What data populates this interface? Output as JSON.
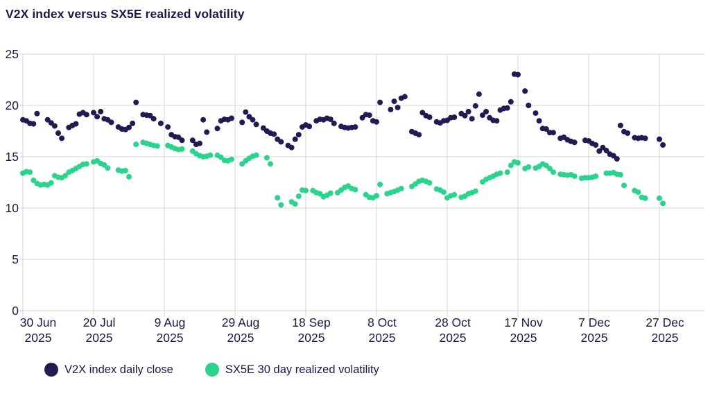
{
  "title": "V2X index versus SX5E realized volatility",
  "colors": {
    "v2x": "#221a52",
    "sx5e": "#2bd48c",
    "grid": "#d6d6d6",
    "text": "#1e1749",
    "background": "#ffffff"
  },
  "chart_data": {
    "type": "scatter",
    "title": "V2X index versus SX5E realized volatility",
    "xlabel": "",
    "ylabel": "",
    "x_unit": "days since 30 Jun 2025",
    "ylim": [
      0,
      25
    ],
    "y_ticks": [
      0,
      5,
      10,
      15,
      20,
      25
    ],
    "grid": true,
    "legend_position": "bottom-left",
    "x_ticks": [
      {
        "d": 0,
        "line1": "30 Jun",
        "line2": "2025"
      },
      {
        "d": 20,
        "line1": "20 Jul",
        "line2": "2025"
      },
      {
        "d": 40,
        "line1": "9 Aug",
        "line2": "2025"
      },
      {
        "d": 60,
        "line1": "29 Aug",
        "line2": "2025"
      },
      {
        "d": 80,
        "line1": "18 Sep",
        "line2": "2025"
      },
      {
        "d": 100,
        "line1": "8 Oct",
        "line2": "2025"
      },
      {
        "d": 120,
        "line1": "28 Oct",
        "line2": "2025"
      },
      {
        "d": 140,
        "line1": "17 Nov",
        "line2": "2025"
      },
      {
        "d": 160,
        "line1": "7 Dec",
        "line2": "2025"
      },
      {
        "d": 180,
        "line1": "27 Dec",
        "line2": "2025"
      }
    ],
    "series": [
      {
        "id": "v2x",
        "name": "V2X index daily close",
        "color": "#221a52",
        "points": [
          [
            0,
            18.6
          ],
          [
            1,
            18.5
          ],
          [
            2,
            18.25
          ],
          [
            3,
            18.2
          ],
          [
            4,
            19.2
          ],
          [
            7,
            18.6
          ],
          [
            8,
            18.3
          ],
          [
            9,
            18.0
          ],
          [
            10,
            17.3
          ],
          [
            11,
            16.8
          ],
          [
            13,
            17.85
          ],
          [
            14,
            18.05
          ],
          [
            15,
            18.2
          ],
          [
            16,
            19.15
          ],
          [
            17,
            19.3
          ],
          [
            18,
            19.1
          ],
          [
            20,
            19.3
          ],
          [
            21,
            18.9
          ],
          [
            22,
            19.4
          ],
          [
            23,
            18.7
          ],
          [
            24,
            18.6
          ],
          [
            25,
            18.35
          ],
          [
            27,
            17.9
          ],
          [
            28,
            17.7
          ],
          [
            29,
            17.65
          ],
          [
            30,
            17.85
          ],
          [
            31,
            18.25
          ],
          [
            32,
            20.3
          ],
          [
            34,
            19.1
          ],
          [
            35,
            19.05
          ],
          [
            36,
            19.0
          ],
          [
            37,
            18.7
          ],
          [
            39,
            18.25
          ],
          [
            41,
            17.9
          ],
          [
            42,
            17.15
          ],
          [
            43,
            16.95
          ],
          [
            44,
            16.9
          ],
          [
            45,
            16.6
          ],
          [
            48,
            16.6
          ],
          [
            49,
            16.2
          ],
          [
            50,
            16.3
          ],
          [
            51,
            18.6
          ],
          [
            52,
            17.4
          ],
          [
            55,
            17.75
          ],
          [
            56,
            18.5
          ],
          [
            57,
            18.65
          ],
          [
            58,
            18.6
          ],
          [
            59,
            18.75
          ],
          [
            62,
            18.35
          ],
          [
            63,
            19.35
          ],
          [
            64,
            18.9
          ],
          [
            65,
            18.6
          ],
          [
            66,
            18.15
          ],
          [
            68,
            17.8
          ],
          [
            69,
            17.5
          ],
          [
            70,
            17.3
          ],
          [
            71,
            17.2
          ],
          [
            72,
            16.7
          ],
          [
            73,
            16.45
          ],
          [
            75,
            16.1
          ],
          [
            76,
            15.9
          ],
          [
            77,
            16.7
          ],
          [
            78,
            17.15
          ],
          [
            79,
            17.9
          ],
          [
            80,
            18.1
          ],
          [
            81,
            17.95
          ],
          [
            83,
            18.5
          ],
          [
            84,
            18.65
          ],
          [
            85,
            18.6
          ],
          [
            86,
            18.75
          ],
          [
            87,
            18.65
          ],
          [
            88,
            18.25
          ],
          [
            90,
            17.95
          ],
          [
            91,
            17.85
          ],
          [
            92,
            17.8
          ],
          [
            93,
            17.85
          ],
          [
            94,
            17.9
          ],
          [
            96,
            18.8
          ],
          [
            97,
            19.1
          ],
          [
            98,
            19.05
          ],
          [
            99,
            18.5
          ],
          [
            100,
            18.4
          ],
          [
            101,
            20.3
          ],
          [
            104,
            19.6
          ],
          [
            105,
            20.4
          ],
          [
            106,
            19.8
          ],
          [
            107,
            20.7
          ],
          [
            108,
            20.85
          ],
          [
            110,
            17.45
          ],
          [
            111,
            17.3
          ],
          [
            112,
            17.15
          ],
          [
            113,
            19.3
          ],
          [
            114,
            19.0
          ],
          [
            115,
            18.85
          ],
          [
            117,
            18.4
          ],
          [
            118,
            18.3
          ],
          [
            119,
            18.5
          ],
          [
            120,
            18.55
          ],
          [
            121,
            18.8
          ],
          [
            122,
            18.85
          ],
          [
            124,
            19.2
          ],
          [
            125,
            19.0
          ],
          [
            126,
            19.4
          ],
          [
            127,
            18.7
          ],
          [
            128,
            19.95
          ],
          [
            129,
            21.1
          ],
          [
            130,
            19.05
          ],
          [
            131,
            19.4
          ],
          [
            132,
            18.8
          ],
          [
            133,
            18.55
          ],
          [
            134,
            18.5
          ],
          [
            135,
            19.55
          ],
          [
            136,
            19.7
          ],
          [
            137,
            19.75
          ],
          [
            138,
            20.35
          ],
          [
            139,
            23.05
          ],
          [
            140,
            23.0
          ],
          [
            142,
            21.4
          ],
          [
            143,
            20.0
          ],
          [
            145,
            19.25
          ],
          [
            146,
            18.5
          ],
          [
            147,
            17.75
          ],
          [
            148,
            17.7
          ],
          [
            149,
            17.35
          ],
          [
            150,
            17.35
          ],
          [
            152,
            16.8
          ],
          [
            153,
            16.9
          ],
          [
            154,
            16.65
          ],
          [
            155,
            16.5
          ],
          [
            156,
            16.4
          ],
          [
            159,
            16.6
          ],
          [
            160,
            16.55
          ],
          [
            161,
            16.3
          ],
          [
            162,
            16.15
          ],
          [
            163,
            15.55
          ],
          [
            164,
            15.9
          ],
          [
            165,
            15.6
          ],
          [
            166,
            15.25
          ],
          [
            167,
            15.1
          ],
          [
            168,
            14.8
          ],
          [
            169,
            18.05
          ],
          [
            170,
            17.45
          ],
          [
            171,
            17.3
          ],
          [
            173,
            16.85
          ],
          [
            174,
            16.8
          ],
          [
            175,
            16.85
          ],
          [
            176,
            16.8
          ],
          [
            180,
            16.7
          ],
          [
            181,
            16.15
          ]
        ]
      },
      {
        "id": "sx5e",
        "name": "SX5E 30 day realized volatility",
        "color": "#2bd48c",
        "points": [
          [
            0,
            13.4
          ],
          [
            1,
            13.55
          ],
          [
            2,
            13.5
          ],
          [
            3,
            12.7
          ],
          [
            4,
            12.4
          ],
          [
            5,
            12.25
          ],
          [
            6,
            12.3
          ],
          [
            7,
            12.25
          ],
          [
            8,
            12.45
          ],
          [
            9,
            13.15
          ],
          [
            10,
            13.0
          ],
          [
            11,
            12.95
          ],
          [
            12,
            13.15
          ],
          [
            13,
            13.5
          ],
          [
            14,
            13.65
          ],
          [
            15,
            13.85
          ],
          [
            16,
            14.05
          ],
          [
            17,
            14.25
          ],
          [
            18,
            14.3
          ],
          [
            20,
            14.5
          ],
          [
            21,
            14.6
          ],
          [
            22,
            14.35
          ],
          [
            23,
            14.2
          ],
          [
            24,
            13.9
          ],
          [
            27,
            13.7
          ],
          [
            28,
            13.6
          ],
          [
            29,
            13.65
          ],
          [
            30,
            13.05
          ],
          [
            32,
            16.2
          ],
          [
            34,
            16.4
          ],
          [
            35,
            16.3
          ],
          [
            36,
            16.2
          ],
          [
            37,
            16.1
          ],
          [
            38,
            16.05
          ],
          [
            41,
            16.1
          ],
          [
            42,
            15.95
          ],
          [
            43,
            15.8
          ],
          [
            44,
            15.7
          ],
          [
            45,
            15.75
          ],
          [
            48,
            15.55
          ],
          [
            49,
            15.3
          ],
          [
            50,
            15.1
          ],
          [
            51,
            15.0
          ],
          [
            52,
            15.05
          ],
          [
            53,
            15.15
          ],
          [
            55,
            15.15
          ],
          [
            56,
            14.95
          ],
          [
            57,
            14.65
          ],
          [
            58,
            14.6
          ],
          [
            59,
            14.75
          ],
          [
            62,
            14.3
          ],
          [
            63,
            14.6
          ],
          [
            64,
            14.85
          ],
          [
            65,
            15.05
          ],
          [
            66,
            15.15
          ],
          [
            69,
            14.9
          ],
          [
            70,
            14.3
          ],
          [
            72,
            11.0
          ],
          [
            73,
            10.3
          ],
          [
            76,
            10.6
          ],
          [
            77,
            10.4
          ],
          [
            78,
            11.15
          ],
          [
            79,
            11.75
          ],
          [
            80,
            11.7
          ],
          [
            82,
            11.7
          ],
          [
            83,
            11.5
          ],
          [
            84,
            11.4
          ],
          [
            85,
            11.1
          ],
          [
            86,
            11.25
          ],
          [
            87,
            11.45
          ],
          [
            89,
            11.5
          ],
          [
            90,
            11.75
          ],
          [
            91,
            12.0
          ],
          [
            92,
            12.15
          ],
          [
            93,
            11.9
          ],
          [
            94,
            11.8
          ],
          [
            97,
            11.3
          ],
          [
            98,
            11.05
          ],
          [
            99,
            11.0
          ],
          [
            100,
            11.2
          ],
          [
            101,
            12.3
          ],
          [
            103,
            11.4
          ],
          [
            104,
            11.5
          ],
          [
            105,
            11.6
          ],
          [
            106,
            11.75
          ],
          [
            107,
            11.9
          ],
          [
            110,
            12.1
          ],
          [
            111,
            12.35
          ],
          [
            112,
            12.6
          ],
          [
            113,
            12.7
          ],
          [
            114,
            12.6
          ],
          [
            115,
            12.45
          ],
          [
            117,
            11.85
          ],
          [
            118,
            11.75
          ],
          [
            119,
            11.55
          ],
          [
            120,
            11.0
          ],
          [
            121,
            11.2
          ],
          [
            122,
            11.3
          ],
          [
            124,
            11.05
          ],
          [
            125,
            11.15
          ],
          [
            126,
            11.4
          ],
          [
            127,
            11.5
          ],
          [
            128,
            11.65
          ],
          [
            130,
            12.55
          ],
          [
            131,
            12.8
          ],
          [
            132,
            12.95
          ],
          [
            133,
            13.1
          ],
          [
            134,
            13.3
          ],
          [
            135,
            13.4
          ],
          [
            137,
            13.5
          ],
          [
            138,
            14.15
          ],
          [
            139,
            14.5
          ],
          [
            140,
            14.4
          ],
          [
            142,
            13.85
          ],
          [
            143,
            14.0
          ],
          [
            145,
            13.9
          ],
          [
            146,
            14.05
          ],
          [
            147,
            14.3
          ],
          [
            148,
            14.15
          ],
          [
            149,
            13.85
          ],
          [
            150,
            13.5
          ],
          [
            152,
            13.3
          ],
          [
            153,
            13.25
          ],
          [
            154,
            13.2
          ],
          [
            155,
            13.25
          ],
          [
            156,
            13.1
          ],
          [
            158,
            12.9
          ],
          [
            159,
            12.95
          ],
          [
            160,
            12.95
          ],
          [
            161,
            13.0
          ],
          [
            162,
            13.1
          ],
          [
            165,
            13.4
          ],
          [
            166,
            13.4
          ],
          [
            167,
            13.45
          ],
          [
            168,
            13.3
          ],
          [
            169,
            13.25
          ],
          [
            170,
            12.2
          ],
          [
            173,
            11.7
          ],
          [
            174,
            11.55
          ],
          [
            175,
            11.05
          ],
          [
            176,
            10.95
          ],
          [
            180,
            10.95
          ],
          [
            181,
            10.45
          ]
        ]
      }
    ]
  },
  "legend": {
    "v2x_label": "V2X index daily close",
    "sx5e_label": "SX5E 30 day realized volatility"
  }
}
